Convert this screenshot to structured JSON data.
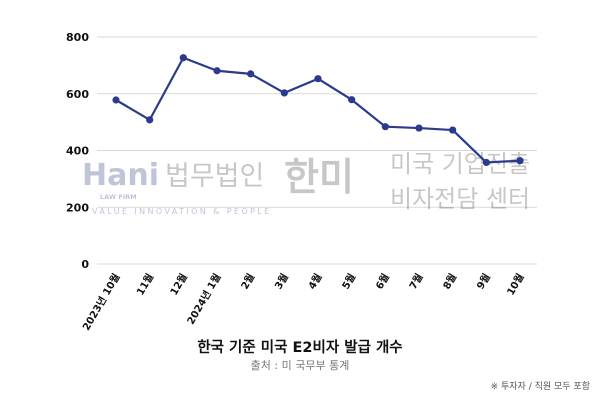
{
  "chart_data": {
    "type": "line",
    "title": "한국 기준 미국 E2비자 발급 개수",
    "subtitle": "출처 : 미 국무부 통계",
    "footnote": "※ 투자자 / 직원 모두 포함",
    "categories": [
      "2023년 10월",
      "11월",
      "12월",
      "2024년 1월",
      "2월",
      "3월",
      "4월",
      "5월",
      "6월",
      "7월",
      "8월",
      "9월",
      "10월"
    ],
    "series": [
      {
        "values": [
          578,
          508,
          727,
          681,
          670,
          603,
          653,
          579,
          484,
          479,
          472,
          358,
          364
        ]
      }
    ],
    "ylim": [
      0,
      800
    ],
    "yticks": [
      0,
      200,
      400,
      600,
      800
    ],
    "grid": true,
    "colors": {
      "line": "#2b3a8c",
      "marker": "#2b3a8c"
    }
  },
  "watermark": {
    "logo_letters": "Hani",
    "logo_sub": "LAW FIRM",
    "firm_name": "법무법인",
    "firm_name_bold": "한미",
    "line1": "미국 기업진출",
    "line2": "비자전담 센터",
    "tagline": "VALUE INNOVATION & PEOPLE"
  }
}
